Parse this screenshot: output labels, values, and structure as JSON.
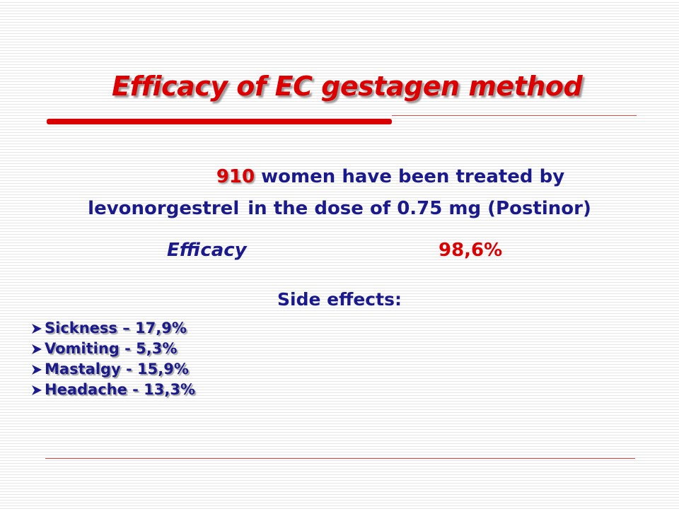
{
  "title": "Efficacy of  EC gestagen method",
  "intro": {
    "number": "910",
    "line1_rest": " women have been treated by",
    "line2_part1": "levonorgestrel",
    "line2_part2": "in the dose of 0.75 mg (Postinor)"
  },
  "efficacy": {
    "label": "Efficacy",
    "value": "98,6%"
  },
  "side_effects": {
    "heading": "Side effects:",
    "items": [
      {
        "label": "Sickness – 17,9%"
      },
      {
        "label": "Vomiting -  5,3%"
      },
      {
        "label": "Mastalgy -  15,9%"
      },
      {
        "label": "Headache - 13,3%"
      }
    ]
  },
  "colors": {
    "title": "#dd0000",
    "body_text": "#1a1a8c",
    "accent_line": "#d80000"
  },
  "icons": {
    "bullet": "arrowhead-bullet-icon"
  }
}
